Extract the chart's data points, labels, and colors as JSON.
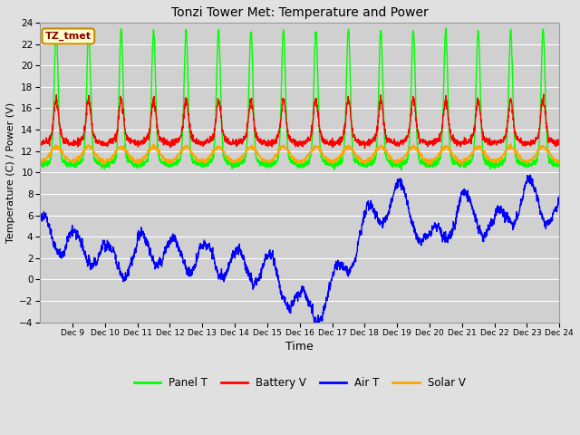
{
  "title": "Tonzi Tower Met: Temperature and Power",
  "xlabel": "Time",
  "ylabel": "Temperature (C) / Power (V)",
  "annotation": "TZ_tmet",
  "xlim_days": [
    8.0,
    24.0
  ],
  "ylim": [
    -4,
    24
  ],
  "yticks": [
    -4,
    -2,
    0,
    2,
    4,
    6,
    8,
    10,
    12,
    14,
    16,
    18,
    20,
    22,
    24
  ],
  "xtick_positions": [
    9,
    10,
    11,
    12,
    13,
    14,
    15,
    16,
    17,
    18,
    19,
    20,
    21,
    22,
    23,
    24
  ],
  "xtick_labels": [
    "Dec 9",
    "Dec 10",
    "Dec 11",
    "Dec 12",
    "Dec 13",
    "Dec 14",
    "Dec 15",
    "Dec 16",
    "Dec 17",
    "Dec 18",
    "Dec 19",
    "Dec 20",
    "Dec 21",
    "Dec 22",
    "Dec 23",
    "Dec 24"
  ],
  "fig_bg_color": "#e0e0e0",
  "plot_bg_color": "#d0d0d0",
  "grid_color": "#ffffff",
  "panel_t_color": "#00ff00",
  "battery_v_color": "#ff0000",
  "air_t_color": "#0000ff",
  "solar_v_color": "#ffa500",
  "line_width": 1.0,
  "legend_labels": [
    "Panel T",
    "Battery V",
    "Air T",
    "Solar V"
  ]
}
